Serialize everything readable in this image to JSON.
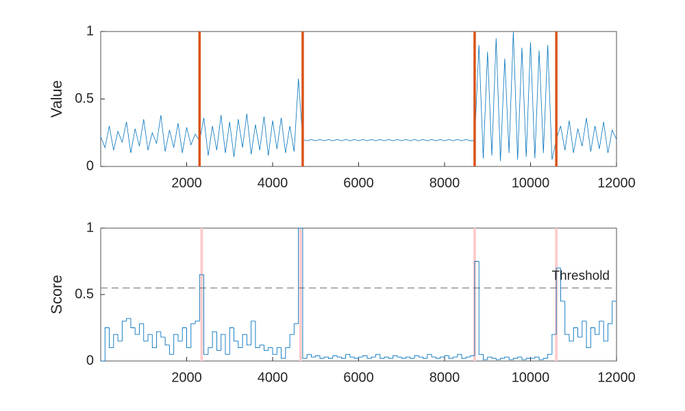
{
  "chart_data": [
    {
      "type": "line",
      "ylabel": "Value",
      "color": "#0072bd",
      "x": [
        0,
        100,
        200,
        300,
        400,
        500,
        600,
        700,
        800,
        900,
        1000,
        1100,
        1200,
        1300,
        1400,
        1500,
        1600,
        1700,
        1800,
        1900,
        2000,
        2100,
        2200,
        2300,
        2400,
        2500,
        2600,
        2700,
        2800,
        2900,
        3000,
        3100,
        3200,
        3300,
        3400,
        3500,
        3600,
        3700,
        3800,
        3900,
        4000,
        4100,
        4200,
        4300,
        4400,
        4500,
        4600,
        4700,
        4800,
        4900,
        5000,
        5100,
        5200,
        5300,
        5400,
        5500,
        5600,
        5700,
        5800,
        5900,
        6000,
        6100,
        6200,
        6300,
        6400,
        6500,
        6600,
        6700,
        6800,
        6900,
        7000,
        7100,
        7200,
        7300,
        7400,
        7500,
        7600,
        7700,
        7800,
        7900,
        8000,
        8100,
        8200,
        8300,
        8400,
        8500,
        8600,
        8700,
        8800,
        8900,
        9000,
        9100,
        9200,
        9300,
        9400,
        9500,
        9600,
        9700,
        9800,
        9900,
        10000,
        10100,
        10200,
        10300,
        10400,
        10500,
        10600,
        10700,
        10800,
        10900,
        11000,
        11100,
        11200,
        11300,
        11400,
        11500,
        11600,
        11700,
        11800,
        11900,
        12000
      ],
      "values": [
        0.22,
        0.14,
        0.3,
        0.12,
        0.26,
        0.18,
        0.33,
        0.1,
        0.28,
        0.15,
        0.35,
        0.12,
        0.25,
        0.17,
        0.38,
        0.11,
        0.27,
        0.14,
        0.32,
        0.1,
        0.29,
        0.16,
        0.24,
        0.19,
        0.36,
        0.08,
        0.3,
        0.12,
        0.38,
        0.1,
        0.33,
        0.07,
        0.35,
        0.14,
        0.39,
        0.09,
        0.31,
        0.12,
        0.37,
        0.08,
        0.34,
        0.13,
        0.36,
        0.1,
        0.3,
        0.11,
        0.65,
        0.2,
        0.19,
        0.2,
        0.19,
        0.2,
        0.19,
        0.2,
        0.19,
        0.2,
        0.19,
        0.2,
        0.19,
        0.2,
        0.19,
        0.2,
        0.19,
        0.2,
        0.19,
        0.2,
        0.19,
        0.2,
        0.19,
        0.2,
        0.19,
        0.2,
        0.19,
        0.2,
        0.19,
        0.2,
        0.19,
        0.2,
        0.19,
        0.2,
        0.19,
        0.2,
        0.19,
        0.2,
        0.19,
        0.2,
        0.19,
        0.19,
        0.9,
        0.06,
        0.85,
        0.08,
        0.95,
        0.04,
        0.8,
        0.1,
        1.0,
        0.05,
        0.88,
        0.07,
        0.92,
        0.06,
        0.86,
        0.1,
        0.9,
        0.05,
        0.2,
        0.3,
        0.12,
        0.34,
        0.1,
        0.28,
        0.15,
        0.36,
        0.11,
        0.3,
        0.13,
        0.33,
        0.1,
        0.27,
        0.2
      ],
      "change_points": [
        2300,
        4700,
        8700,
        10600
      ],
      "change_color": "#d95319",
      "xlim": [
        0,
        12000
      ],
      "xticks": [
        2000,
        4000,
        6000,
        8000,
        10000,
        12000
      ],
      "ylim": [
        0,
        1
      ],
      "yticks": [
        0,
        0.5,
        1
      ]
    },
    {
      "type": "stairs",
      "ylabel": "Score",
      "color": "#0072bd",
      "x": [
        0,
        100,
        200,
        300,
        400,
        500,
        600,
        700,
        800,
        900,
        1000,
        1100,
        1200,
        1300,
        1400,
        1500,
        1600,
        1700,
        1800,
        1900,
        2000,
        2100,
        2200,
        2300,
        2400,
        2500,
        2600,
        2700,
        2800,
        2900,
        3000,
        3100,
        3200,
        3300,
        3400,
        3500,
        3600,
        3700,
        3800,
        3900,
        4000,
        4100,
        4200,
        4300,
        4400,
        4500,
        4600,
        4700,
        4800,
        4900,
        5000,
        5100,
        5200,
        5300,
        5400,
        5500,
        5600,
        5700,
        5800,
        5900,
        6000,
        6100,
        6200,
        6300,
        6400,
        6500,
        6600,
        6700,
        6800,
        6900,
        7000,
        7100,
        7200,
        7300,
        7400,
        7500,
        7600,
        7700,
        7800,
        7900,
        8000,
        8100,
        8200,
        8300,
        8400,
        8500,
        8600,
        8700,
        8800,
        8900,
        9000,
        9100,
        9200,
        9300,
        9400,
        9500,
        9600,
        9700,
        9800,
        9900,
        10000,
        10100,
        10200,
        10300,
        10400,
        10500,
        10600,
        10700,
        10800,
        10900,
        11000,
        11100,
        11200,
        11300,
        11400,
        11500,
        11600,
        11700,
        11800,
        11900
      ],
      "values": [
        0.0,
        0.25,
        0.1,
        0.2,
        0.15,
        0.3,
        0.32,
        0.25,
        0.2,
        0.28,
        0.15,
        0.2,
        0.1,
        0.22,
        0.18,
        0.12,
        0.05,
        0.2,
        0.15,
        0.25,
        0.1,
        0.28,
        0.3,
        0.65,
        0.05,
        0.1,
        0.22,
        0.08,
        0.2,
        0.05,
        0.25,
        0.15,
        0.1,
        0.2,
        0.12,
        0.3,
        0.1,
        0.12,
        0.08,
        0.1,
        0.05,
        0.1,
        0.02,
        0.1,
        0.2,
        0.28,
        1.0,
        0.02,
        0.05,
        0.03,
        0.04,
        0.02,
        0.03,
        0.02,
        0.04,
        0.03,
        0.02,
        0.05,
        0.03,
        0.02,
        0.03,
        0.04,
        0.02,
        0.03,
        0.05,
        0.02,
        0.03,
        0.02,
        0.04,
        0.03,
        0.02,
        0.03,
        0.02,
        0.04,
        0.03,
        0.02,
        0.05,
        0.03,
        0.02,
        0.03,
        0.04,
        0.02,
        0.03,
        0.05,
        0.02,
        0.03,
        0.04,
        0.75,
        0.05,
        0.01,
        0.03,
        0.02,
        0.01,
        0.02,
        0.03,
        0.01,
        0.02,
        0.03,
        0.01,
        0.02,
        0.02,
        0.03,
        0.01,
        0.02,
        0.05,
        0.2,
        0.7,
        0.45,
        0.2,
        0.15,
        0.25,
        0.18,
        0.3,
        0.1,
        0.25,
        0.2,
        0.3,
        0.15,
        0.28,
        0.45
      ],
      "threshold": 0.55,
      "threshold_label": "Threshold",
      "highlights": [
        2350,
        4650,
        8700,
        10600
      ],
      "highlight_color": "#ffcccc",
      "xlim": [
        0,
        12000
      ],
      "xticks": [
        2000,
        4000,
        6000,
        8000,
        10000,
        12000
      ],
      "ylim": [
        0,
        1
      ],
      "yticks": [
        0,
        0.5,
        1
      ]
    }
  ]
}
